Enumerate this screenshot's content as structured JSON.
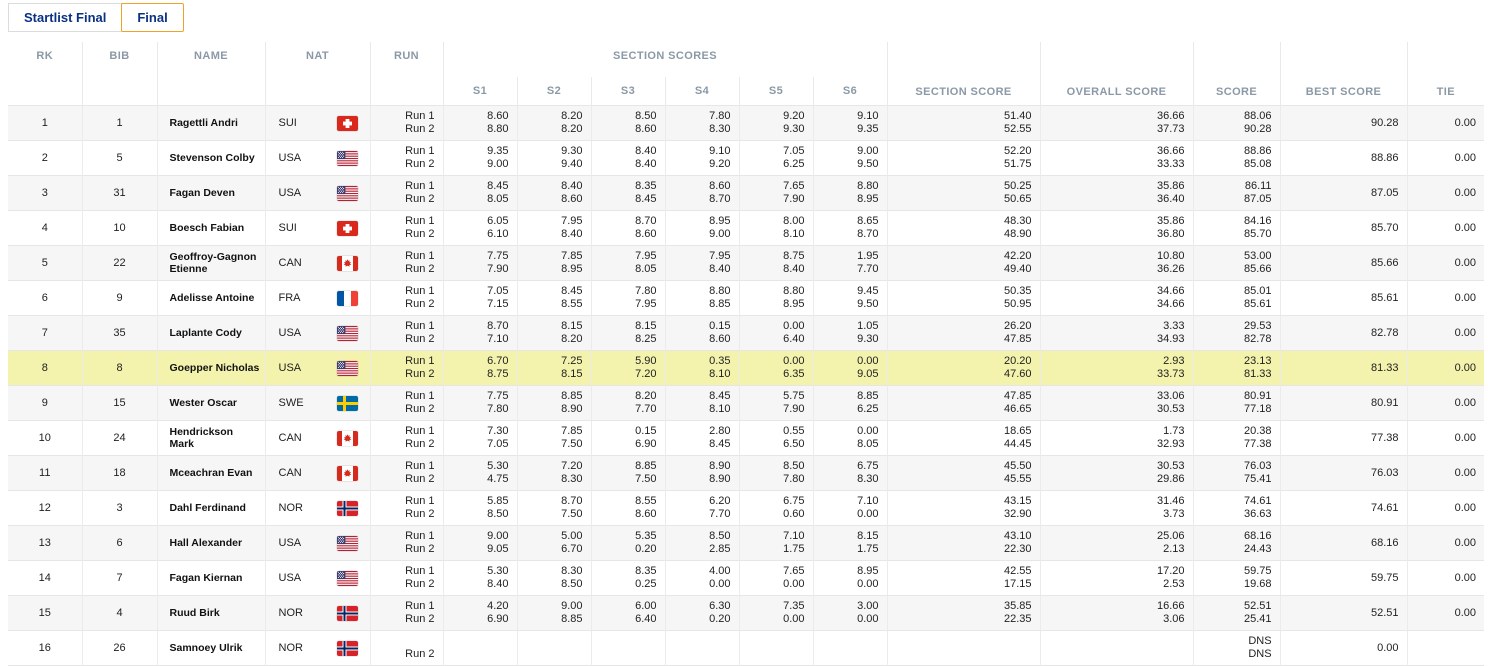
{
  "tabs": [
    {
      "label": "Startlist Final",
      "active": false
    },
    {
      "label": "Final",
      "active": true
    }
  ],
  "header": {
    "rk": "RK",
    "bib": "BIB",
    "name": "NAME",
    "nat": "NAT",
    "run": "RUN",
    "section_scores_group": "SECTION SCORES",
    "s": [
      "S1",
      "S2",
      "S3",
      "S4",
      "S5",
      "S6"
    ],
    "section_score": "SECTION SCORE",
    "overall_score": "OVERALL SCORE",
    "score": "SCORE",
    "best_score": "BEST SCORE",
    "tie": "TIE"
  },
  "colors": {
    "highlight_row": "#f3f3ad",
    "stripe_row": "#f6f6f6",
    "header_text": "#8b99a6",
    "tab_text": "#0a3182",
    "active_tab_border": "#f0a227"
  },
  "rows": [
    {
      "rank": "1",
      "bib": "1",
      "name": "Ragettli Andri",
      "nat": "SUI",
      "flag": "sui",
      "runs": [
        "Run 1",
        "Run 2"
      ],
      "sections": [
        [
          "8.60",
          "8.80"
        ],
        [
          "8.20",
          "8.20"
        ],
        [
          "8.50",
          "8.60"
        ],
        [
          "7.80",
          "8.30"
        ],
        [
          "9.20",
          "9.30"
        ],
        [
          "9.10",
          "9.35"
        ]
      ],
      "section_total": [
        "51.40",
        "52.55"
      ],
      "overall": [
        "36.66",
        "37.73"
      ],
      "score": [
        "88.06",
        "90.28"
      ],
      "best": "90.28",
      "tie": "0.00"
    },
    {
      "rank": "2",
      "bib": "5",
      "name": "Stevenson Colby",
      "nat": "USA",
      "flag": "usa",
      "runs": [
        "Run 1",
        "Run 2"
      ],
      "sections": [
        [
          "9.35",
          "9.00"
        ],
        [
          "9.30",
          "9.40"
        ],
        [
          "8.40",
          "8.40"
        ],
        [
          "9.10",
          "9.20"
        ],
        [
          "7.05",
          "6.25"
        ],
        [
          "9.00",
          "9.50"
        ]
      ],
      "section_total": [
        "52.20",
        "51.75"
      ],
      "overall": [
        "36.66",
        "33.33"
      ],
      "score": [
        "88.86",
        "85.08"
      ],
      "best": "88.86",
      "tie": "0.00"
    },
    {
      "rank": "3",
      "bib": "31",
      "name": "Fagan Deven",
      "nat": "USA",
      "flag": "usa",
      "runs": [
        "Run 1",
        "Run 2"
      ],
      "sections": [
        [
          "8.45",
          "8.05"
        ],
        [
          "8.40",
          "8.60"
        ],
        [
          "8.35",
          "8.45"
        ],
        [
          "8.60",
          "8.70"
        ],
        [
          "7.65",
          "7.90"
        ],
        [
          "8.80",
          "8.95"
        ]
      ],
      "section_total": [
        "50.25",
        "50.65"
      ],
      "overall": [
        "35.86",
        "36.40"
      ],
      "score": [
        "86.11",
        "87.05"
      ],
      "best": "87.05",
      "tie": "0.00"
    },
    {
      "rank": "4",
      "bib": "10",
      "name": "Boesch Fabian",
      "nat": "SUI",
      "flag": "sui",
      "runs": [
        "Run 1",
        "Run 2"
      ],
      "sections": [
        [
          "6.05",
          "6.10"
        ],
        [
          "7.95",
          "8.40"
        ],
        [
          "8.70",
          "8.60"
        ],
        [
          "8.95",
          "9.00"
        ],
        [
          "8.00",
          "8.10"
        ],
        [
          "8.65",
          "8.70"
        ]
      ],
      "section_total": [
        "48.30",
        "48.90"
      ],
      "overall": [
        "35.86",
        "36.80"
      ],
      "score": [
        "84.16",
        "85.70"
      ],
      "best": "85.70",
      "tie": "0.00"
    },
    {
      "rank": "5",
      "bib": "22",
      "name": "Geoffroy-Gagnon Etienne",
      "nat": "CAN",
      "flag": "can",
      "runs": [
        "Run 1",
        "Run 2"
      ],
      "sections": [
        [
          "7.75",
          "7.90"
        ],
        [
          "7.85",
          "8.95"
        ],
        [
          "7.95",
          "8.05"
        ],
        [
          "7.95",
          "8.40"
        ],
        [
          "8.75",
          "8.40"
        ],
        [
          "1.95",
          "7.70"
        ]
      ],
      "section_total": [
        "42.20",
        "49.40"
      ],
      "overall": [
        "10.80",
        "36.26"
      ],
      "score": [
        "53.00",
        "85.66"
      ],
      "best": "85.66",
      "tie": "0.00"
    },
    {
      "rank": "6",
      "bib": "9",
      "name": "Adelisse Antoine",
      "nat": "FRA",
      "flag": "fra",
      "runs": [
        "Run 1",
        "Run 2"
      ],
      "sections": [
        [
          "7.05",
          "7.15"
        ],
        [
          "8.45",
          "8.55"
        ],
        [
          "7.80",
          "7.95"
        ],
        [
          "8.80",
          "8.85"
        ],
        [
          "8.80",
          "8.95"
        ],
        [
          "9.45",
          "9.50"
        ]
      ],
      "section_total": [
        "50.35",
        "50.95"
      ],
      "overall": [
        "34.66",
        "34.66"
      ],
      "score": [
        "85.01",
        "85.61"
      ],
      "best": "85.61",
      "tie": "0.00"
    },
    {
      "rank": "7",
      "bib": "35",
      "name": "Laplante Cody",
      "nat": "USA",
      "flag": "usa",
      "runs": [
        "Run 1",
        "Run 2"
      ],
      "sections": [
        [
          "8.70",
          "7.10"
        ],
        [
          "8.15",
          "8.20"
        ],
        [
          "8.15",
          "8.25"
        ],
        [
          "0.15",
          "8.60"
        ],
        [
          "0.00",
          "6.40"
        ],
        [
          "1.05",
          "9.30"
        ]
      ],
      "section_total": [
        "26.20",
        "47.85"
      ],
      "overall": [
        "3.33",
        "34.93"
      ],
      "score": [
        "29.53",
        "82.78"
      ],
      "best": "82.78",
      "tie": "0.00"
    },
    {
      "rank": "8",
      "bib": "8",
      "name": "Goepper Nicholas",
      "nat": "USA",
      "flag": "usa",
      "highlight": true,
      "runs": [
        "Run 1",
        "Run 2"
      ],
      "sections": [
        [
          "6.70",
          "8.75"
        ],
        [
          "7.25",
          "8.15"
        ],
        [
          "5.90",
          "7.20"
        ],
        [
          "0.35",
          "8.10"
        ],
        [
          "0.00",
          "6.35"
        ],
        [
          "0.00",
          "9.05"
        ]
      ],
      "section_total": [
        "20.20",
        "47.60"
      ],
      "overall": [
        "2.93",
        "33.73"
      ],
      "score": [
        "23.13",
        "81.33"
      ],
      "best": "81.33",
      "tie": "0.00"
    },
    {
      "rank": "9",
      "bib": "15",
      "name": "Wester Oscar",
      "nat": "SWE",
      "flag": "swe",
      "runs": [
        "Run 1",
        "Run 2"
      ],
      "sections": [
        [
          "7.75",
          "7.80"
        ],
        [
          "8.85",
          "8.90"
        ],
        [
          "8.20",
          "7.70"
        ],
        [
          "8.45",
          "8.10"
        ],
        [
          "5.75",
          "7.90"
        ],
        [
          "8.85",
          "6.25"
        ]
      ],
      "section_total": [
        "47.85",
        "46.65"
      ],
      "overall": [
        "33.06",
        "30.53"
      ],
      "score": [
        "80.91",
        "77.18"
      ],
      "best": "80.91",
      "tie": "0.00"
    },
    {
      "rank": "10",
      "bib": "24",
      "name": "Hendrickson Mark",
      "nat": "CAN",
      "flag": "can",
      "runs": [
        "Run 1",
        "Run 2"
      ],
      "sections": [
        [
          "7.30",
          "7.05"
        ],
        [
          "7.85",
          "7.50"
        ],
        [
          "0.15",
          "6.90"
        ],
        [
          "2.80",
          "8.45"
        ],
        [
          "0.55",
          "6.50"
        ],
        [
          "0.00",
          "8.05"
        ]
      ],
      "section_total": [
        "18.65",
        "44.45"
      ],
      "overall": [
        "1.73",
        "32.93"
      ],
      "score": [
        "20.38",
        "77.38"
      ],
      "best": "77.38",
      "tie": "0.00"
    },
    {
      "rank": "11",
      "bib": "18",
      "name": "Mceachran Evan",
      "nat": "CAN",
      "flag": "can",
      "runs": [
        "Run 1",
        "Run 2"
      ],
      "sections": [
        [
          "5.30",
          "4.75"
        ],
        [
          "7.20",
          "8.30"
        ],
        [
          "8.85",
          "7.50"
        ],
        [
          "8.90",
          "8.90"
        ],
        [
          "8.50",
          "7.80"
        ],
        [
          "6.75",
          "8.30"
        ]
      ],
      "section_total": [
        "45.50",
        "45.55"
      ],
      "overall": [
        "30.53",
        "29.86"
      ],
      "score": [
        "76.03",
        "75.41"
      ],
      "best": "76.03",
      "tie": "0.00"
    },
    {
      "rank": "12",
      "bib": "3",
      "name": "Dahl Ferdinand",
      "nat": "NOR",
      "flag": "nor",
      "runs": [
        "Run 1",
        "Run 2"
      ],
      "sections": [
        [
          "5.85",
          "8.50"
        ],
        [
          "8.70",
          "7.50"
        ],
        [
          "8.55",
          "8.60"
        ],
        [
          "6.20",
          "7.70"
        ],
        [
          "6.75",
          "0.60"
        ],
        [
          "7.10",
          "0.00"
        ]
      ],
      "section_total": [
        "43.15",
        "32.90"
      ],
      "overall": [
        "31.46",
        "3.73"
      ],
      "score": [
        "74.61",
        "36.63"
      ],
      "best": "74.61",
      "tie": "0.00"
    },
    {
      "rank": "13",
      "bib": "6",
      "name": "Hall Alexander",
      "nat": "USA",
      "flag": "usa",
      "runs": [
        "Run 1",
        "Run 2"
      ],
      "sections": [
        [
          "9.00",
          "9.05"
        ],
        [
          "5.00",
          "6.70"
        ],
        [
          "5.35",
          "0.20"
        ],
        [
          "8.50",
          "2.85"
        ],
        [
          "7.10",
          "1.75"
        ],
        [
          "8.15",
          "1.75"
        ]
      ],
      "section_total": [
        "43.10",
        "22.30"
      ],
      "overall": [
        "25.06",
        "2.13"
      ],
      "score": [
        "68.16",
        "24.43"
      ],
      "best": "68.16",
      "tie": "0.00"
    },
    {
      "rank": "14",
      "bib": "7",
      "name": "Fagan Kiernan",
      "nat": "USA",
      "flag": "usa",
      "runs": [
        "Run 1",
        "Run 2"
      ],
      "sections": [
        [
          "5.30",
          "8.40"
        ],
        [
          "8.30",
          "8.50"
        ],
        [
          "8.35",
          "0.25"
        ],
        [
          "4.00",
          "0.00"
        ],
        [
          "7.65",
          "0.00"
        ],
        [
          "8.95",
          "0.00"
        ]
      ],
      "section_total": [
        "42.55",
        "17.15"
      ],
      "overall": [
        "17.20",
        "2.53"
      ],
      "score": [
        "59.75",
        "19.68"
      ],
      "best": "59.75",
      "tie": "0.00"
    },
    {
      "rank": "15",
      "bib": "4",
      "name": "Ruud Birk",
      "nat": "NOR",
      "flag": "nor",
      "runs": [
        "Run 1",
        "Run 2"
      ],
      "sections": [
        [
          "4.20",
          "6.90"
        ],
        [
          "9.00",
          "8.85"
        ],
        [
          "6.00",
          "6.40"
        ],
        [
          "6.30",
          "0.20"
        ],
        [
          "7.35",
          "0.00"
        ],
        [
          "3.00",
          "0.00"
        ]
      ],
      "section_total": [
        "35.85",
        "22.35"
      ],
      "overall": [
        "16.66",
        "3.06"
      ],
      "score": [
        "52.51",
        "25.41"
      ],
      "best": "52.51",
      "tie": "0.00"
    },
    {
      "rank": "16",
      "bib": "26",
      "name": "Samnoey Ulrik",
      "nat": "NOR",
      "flag": "nor",
      "runs": [
        "",
        "Run 2"
      ],
      "sections": [
        [
          "",
          ""
        ],
        [
          "",
          ""
        ],
        [
          "",
          ""
        ],
        [
          "",
          ""
        ],
        [
          "",
          ""
        ],
        [
          "",
          ""
        ]
      ],
      "section_total": [
        "",
        ""
      ],
      "overall": [
        "",
        ""
      ],
      "score": [
        "DNS",
        "DNS"
      ],
      "best": "0.00",
      "tie": ""
    }
  ]
}
